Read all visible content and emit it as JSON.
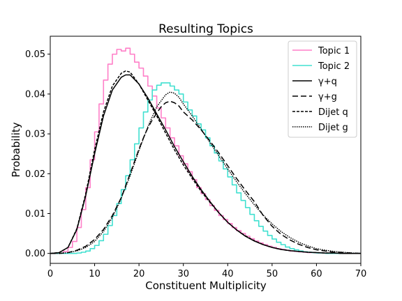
{
  "chart_data": {
    "type": "line",
    "title": "Resulting Topics",
    "xlabel": "Constituent Multiplicity",
    "ylabel": "Probability",
    "xlim": [
      0,
      70
    ],
    "ylim": [
      -0.0025,
      0.0545
    ],
    "xticks": [
      0,
      10,
      20,
      30,
      40,
      50,
      60,
      70
    ],
    "yticks": [
      0.0,
      0.01,
      0.02,
      0.03,
      0.04,
      0.05
    ],
    "xtick_labels": [
      "0",
      "10",
      "20",
      "30",
      "40",
      "50",
      "60",
      "70"
    ],
    "ytick_labels": [
      "0.00",
      "0.01",
      "0.02",
      "0.03",
      "0.04",
      "0.05"
    ],
    "grid": false,
    "legend_position": "top-right",
    "series": [
      {
        "name": "Topic 1",
        "style": "step",
        "color": "#ff7fc8",
        "dash": "solid",
        "x": [
          0,
          1,
          2,
          3,
          4,
          5,
          6,
          7,
          8,
          9,
          10,
          11,
          12,
          13,
          14,
          15,
          16,
          17,
          18,
          19,
          20,
          21,
          22,
          23,
          24,
          25,
          26,
          27,
          28,
          29,
          30,
          31,
          32,
          33,
          34,
          35,
          36,
          37,
          38,
          39,
          40,
          41,
          42,
          43,
          44,
          45,
          46,
          47,
          48,
          49,
          50,
          51,
          52,
          53,
          54,
          55,
          56,
          57,
          58,
          59,
          60,
          61,
          62,
          63,
          64,
          65,
          66,
          67,
          68,
          69,
          70
        ],
        "values": [
          0,
          0,
          0,
          0.0005,
          0.0015,
          0.003,
          0.0065,
          0.011,
          0.0165,
          0.0235,
          0.0305,
          0.0375,
          0.0435,
          0.0475,
          0.05,
          0.0512,
          0.0508,
          0.0515,
          0.05,
          0.048,
          0.0465,
          0.0445,
          0.042,
          0.0395,
          0.0365,
          0.034,
          0.0315,
          0.029,
          0.027,
          0.0245,
          0.0225,
          0.0205,
          0.0185,
          0.0165,
          0.015,
          0.0135,
          0.012,
          0.0108,
          0.0095,
          0.0085,
          0.0075,
          0.0065,
          0.0057,
          0.005,
          0.0043,
          0.0037,
          0.0031,
          0.0026,
          0.0022,
          0.0018,
          0.0015,
          0.0012,
          0.001,
          0.0008,
          0.0006,
          0.0005,
          0.0004,
          0.0003,
          0.0002,
          0.0002,
          0.0001,
          0.0001,
          0,
          0,
          0,
          0,
          0,
          0,
          0,
          0,
          0
        ]
      },
      {
        "name": "Topic 2",
        "style": "step",
        "color": "#40e0d0",
        "dash": "solid",
        "x": [
          0,
          1,
          2,
          3,
          4,
          5,
          6,
          7,
          8,
          9,
          10,
          11,
          12,
          13,
          14,
          15,
          16,
          17,
          18,
          19,
          20,
          21,
          22,
          23,
          24,
          25,
          26,
          27,
          28,
          29,
          30,
          31,
          32,
          33,
          34,
          35,
          36,
          37,
          38,
          39,
          40,
          41,
          42,
          43,
          44,
          45,
          46,
          47,
          48,
          49,
          50,
          51,
          52,
          53,
          54,
          55,
          56,
          57,
          58,
          59,
          60,
          61,
          62,
          63,
          64,
          65,
          66,
          67,
          68,
          69,
          70
        ],
        "values": [
          0,
          0,
          0,
          0,
          0,
          0,
          0.0001,
          0.0003,
          0.0006,
          0.0012,
          0.002,
          0.0032,
          0.0048,
          0.007,
          0.0095,
          0.0125,
          0.016,
          0.0195,
          0.0235,
          0.0275,
          0.0315,
          0.0355,
          0.0385,
          0.041,
          0.0422,
          0.0428,
          0.0428,
          0.042,
          0.041,
          0.04,
          0.038,
          0.036,
          0.0345,
          0.0325,
          0.031,
          0.029,
          0.027,
          0.0252,
          0.0232,
          0.0212,
          0.0192,
          0.0172,
          0.0152,
          0.0133,
          0.0115,
          0.0098,
          0.0082,
          0.0068,
          0.0056,
          0.0045,
          0.0036,
          0.0028,
          0.0022,
          0.0016,
          0.0012,
          0.0009,
          0.0006,
          0.0004,
          0.0003,
          0.0002,
          0.0001,
          0.0001,
          0,
          0,
          0,
          0,
          0,
          0,
          0,
          0,
          0
        ]
      },
      {
        "name": "γ+q",
        "style": "line",
        "color": "#000000",
        "dash": "solid",
        "x": [
          0,
          2,
          4,
          6,
          8,
          10,
          12,
          14,
          16,
          17,
          18,
          20,
          22,
          24,
          26,
          28,
          30,
          32,
          34,
          36,
          38,
          40,
          42,
          44,
          46,
          48,
          50,
          52,
          54,
          56,
          58,
          60,
          62,
          64,
          66,
          68,
          70
        ],
        "values": [
          0,
          0.0002,
          0.0015,
          0.006,
          0.0145,
          0.025,
          0.0345,
          0.041,
          0.0442,
          0.0448,
          0.0448,
          0.0425,
          0.039,
          0.035,
          0.031,
          0.0268,
          0.023,
          0.0193,
          0.016,
          0.013,
          0.0102,
          0.0078,
          0.0059,
          0.0043,
          0.0031,
          0.0022,
          0.0015,
          0.001,
          0.0007,
          0.0005,
          0.0003,
          0.0002,
          0.0001,
          0.0001,
          0,
          0,
          0
        ]
      },
      {
        "name": "γ+g",
        "style": "line",
        "color": "#000000",
        "dash": "dashed",
        "x": [
          0,
          2,
          4,
          6,
          8,
          10,
          12,
          14,
          16,
          18,
          20,
          21,
          22,
          23,
          24,
          25,
          26,
          27,
          28,
          29,
          30,
          32,
          34,
          36,
          38,
          40,
          42,
          44,
          46,
          48,
          50,
          52,
          54,
          56,
          58,
          60,
          62,
          64,
          66,
          68,
          70
        ],
        "values": [
          0,
          0,
          0.0002,
          0.0008,
          0.0018,
          0.0035,
          0.006,
          0.0095,
          0.014,
          0.02,
          0.0262,
          0.029,
          0.0315,
          0.0335,
          0.0352,
          0.0368,
          0.0378,
          0.0382,
          0.0378,
          0.037,
          0.0355,
          0.0335,
          0.031,
          0.0282,
          0.0252,
          0.022,
          0.0188,
          0.0158,
          0.013,
          0.0095,
          0.0068,
          0.0048,
          0.0034,
          0.0023,
          0.0015,
          0.0009,
          0.0006,
          0.0003,
          0.0002,
          0.0001,
          0
        ]
      },
      {
        "name": "Dijet q",
        "style": "line",
        "color": "#000000",
        "dash": "shortdash",
        "x": [
          0,
          2,
          4,
          6,
          8,
          10,
          12,
          14,
          16,
          17,
          18,
          20,
          22,
          24,
          26,
          28,
          30,
          32,
          34,
          36,
          38,
          40,
          42,
          44,
          46,
          48,
          50,
          52,
          54,
          56,
          58,
          60,
          62,
          64,
          66,
          68,
          70
        ],
        "values": [
          0,
          0.0002,
          0.0015,
          0.0062,
          0.015,
          0.026,
          0.0355,
          0.042,
          0.0452,
          0.0458,
          0.0455,
          0.0425,
          0.0385,
          0.0345,
          0.0302,
          0.026,
          0.0222,
          0.0188,
          0.0156,
          0.0128,
          0.0102,
          0.0078,
          0.0059,
          0.0044,
          0.0032,
          0.0022,
          0.0015,
          0.001,
          0.0007,
          0.0005,
          0.0003,
          0.0002,
          0.0001,
          0.0001,
          0,
          0,
          0
        ]
      },
      {
        "name": "Dijet g",
        "style": "line",
        "color": "#000000",
        "dash": "dotted",
        "x": [
          0,
          2,
          4,
          6,
          8,
          10,
          12,
          14,
          16,
          18,
          20,
          22,
          24,
          26,
          27,
          28,
          29,
          30,
          32,
          34,
          36,
          38,
          40,
          42,
          44,
          46,
          48,
          50,
          52,
          54,
          56,
          58,
          60,
          62,
          64,
          66,
          68,
          70
        ],
        "values": [
          0,
          0,
          0.0002,
          0.0006,
          0.0015,
          0.003,
          0.0055,
          0.009,
          0.0138,
          0.0195,
          0.0258,
          0.0318,
          0.0368,
          0.0398,
          0.0405,
          0.0402,
          0.0392,
          0.0375,
          0.0345,
          0.0312,
          0.0278,
          0.0245,
          0.0212,
          0.018,
          0.015,
          0.0122,
          0.0096,
          0.0074,
          0.0055,
          0.004,
          0.0028,
          0.0019,
          0.0012,
          0.0008,
          0.0005,
          0.0003,
          0.0001,
          0
        ]
      }
    ]
  }
}
